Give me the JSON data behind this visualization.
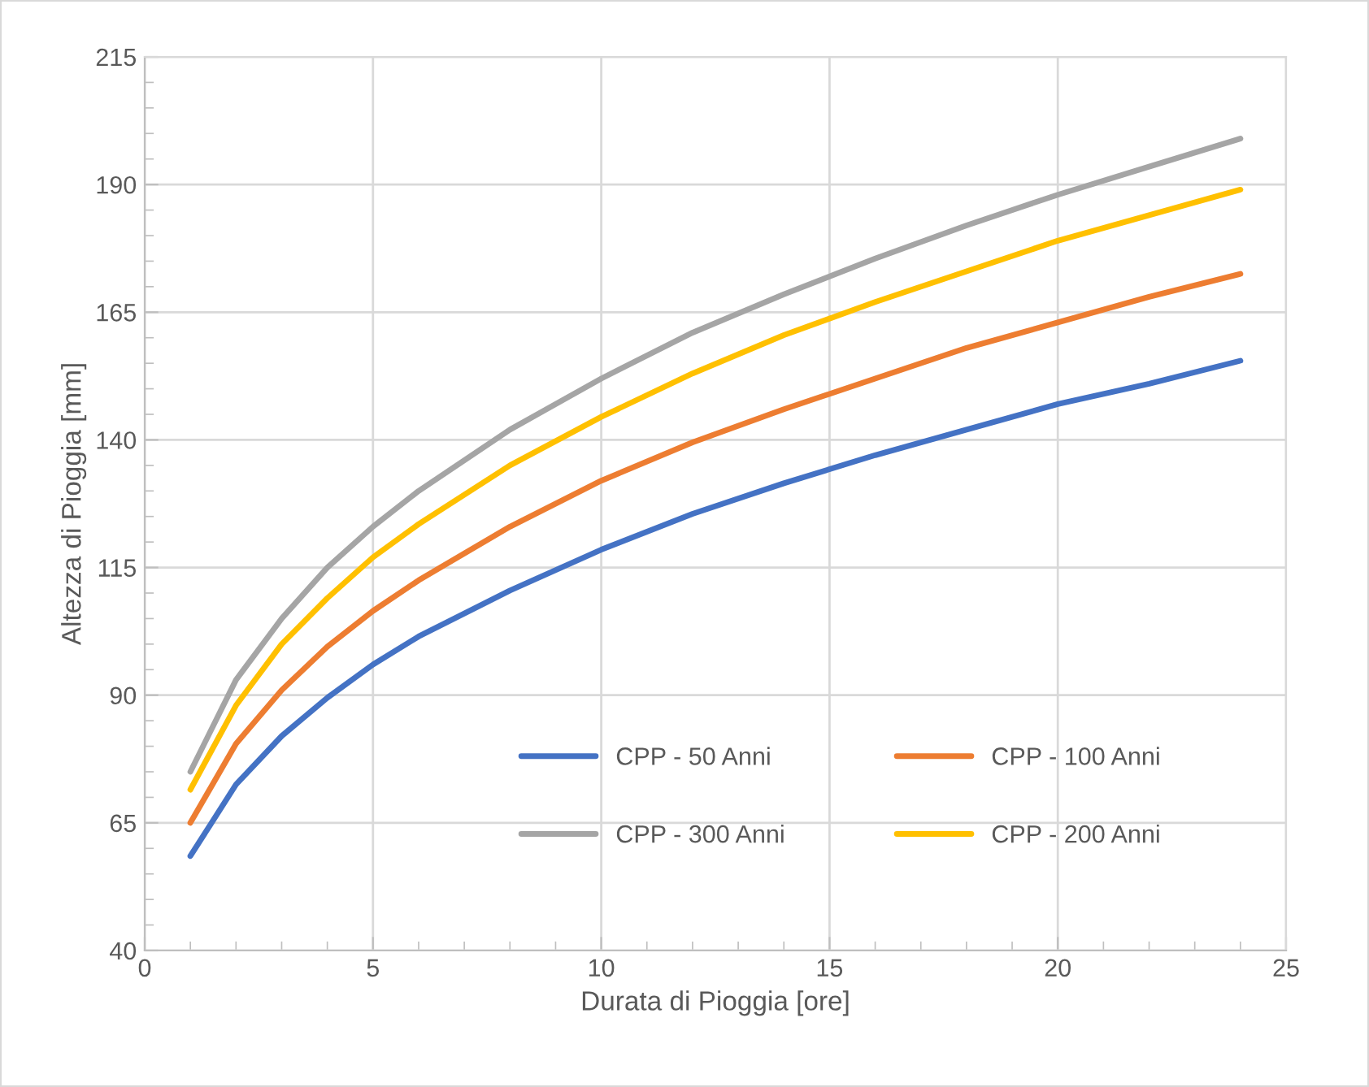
{
  "chart_data": {
    "type": "line",
    "xlabel": "Durata di Pioggia [ore]",
    "ylabel": "Altezza di Pioggia [mm]",
    "x": [
      1,
      2,
      3,
      4,
      5,
      6,
      8,
      10,
      12,
      14,
      16,
      18,
      20,
      22,
      24
    ],
    "series": [
      {
        "name": "CPP - 50 Anni",
        "color": "#4472c4",
        "values": [
          58.5,
          72.5,
          82,
          89.5,
          96,
          101.5,
          110.5,
          118.5,
          125.5,
          131.5,
          137,
          142,
          147,
          151,
          155.5
        ]
      },
      {
        "name": "CPP - 100 Anni",
        "color": "#ed7d31",
        "values": [
          65,
          80.5,
          91,
          99.5,
          106.5,
          112.5,
          123,
          132,
          139.5,
          146,
          152,
          158,
          163,
          168,
          172.5
        ]
      },
      {
        "name": "CPP - 300 Anni",
        "color": "#a5a5a5",
        "values": [
          75,
          93,
          105,
          115,
          123,
          130,
          142,
          152,
          161,
          168.5,
          175.5,
          182,
          188,
          193.5,
          199
        ]
      },
      {
        "name": "CPP - 200 Anni",
        "color": "#ffc000",
        "values": [
          71.5,
          88,
          100,
          109,
          117,
          123.5,
          135,
          144.5,
          153,
          160.5,
          167,
          173,
          179,
          184,
          189
        ]
      }
    ],
    "xlim": [
      0,
      25
    ],
    "xticks": [
      0,
      5,
      10,
      15,
      20,
      25
    ],
    "ylim": [
      40,
      215
    ],
    "yticks": [
      40,
      65,
      90,
      115,
      140,
      165,
      190,
      215
    ],
    "grid": true,
    "legend": "bottom",
    "marker": "none",
    "line_style": "solid"
  }
}
